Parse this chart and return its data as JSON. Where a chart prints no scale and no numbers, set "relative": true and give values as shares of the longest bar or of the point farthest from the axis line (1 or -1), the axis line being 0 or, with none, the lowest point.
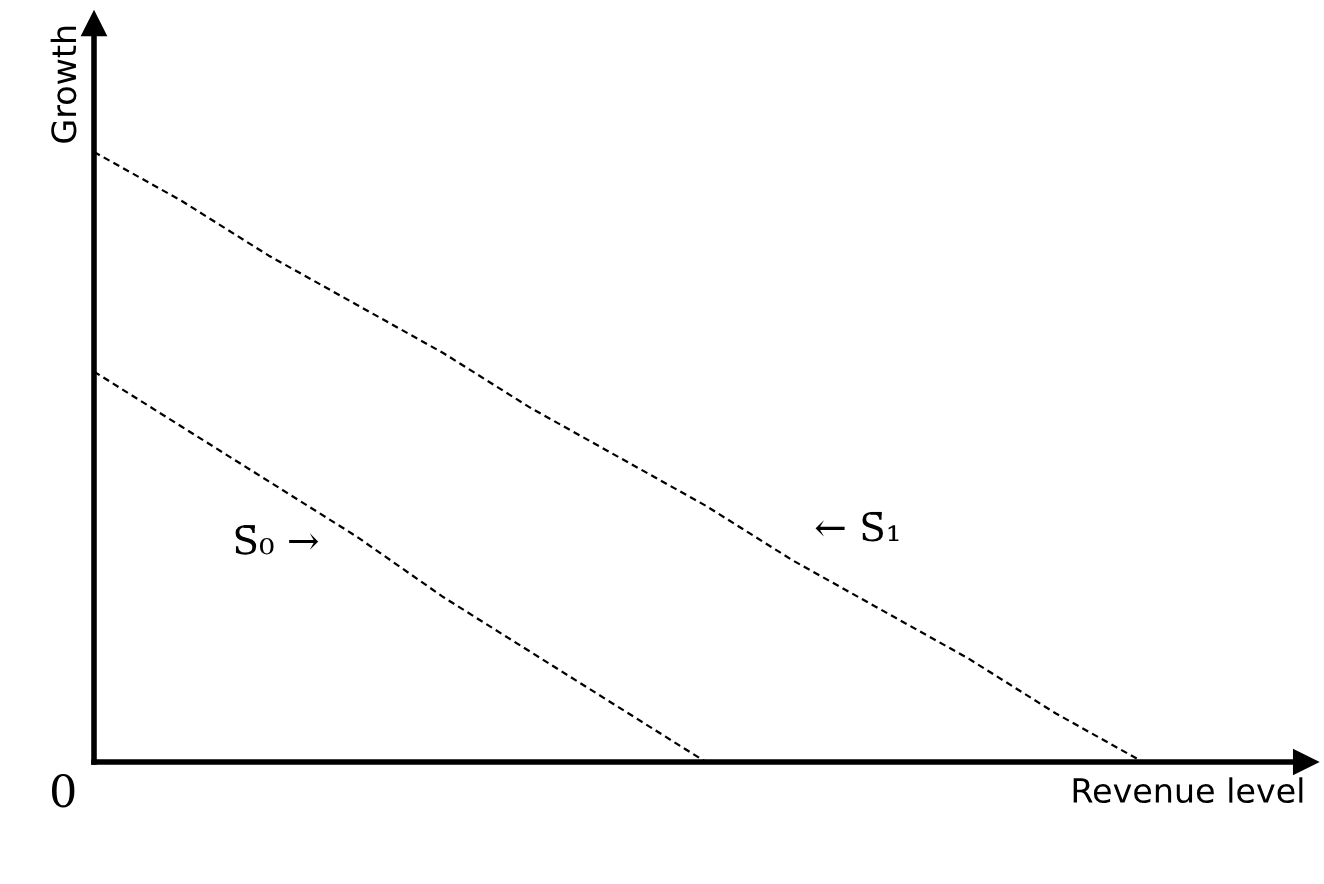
{
  "chart_data": {
    "type": "line",
    "relative": true,
    "xlabel": "Revenue level",
    "ylabel": "Growth",
    "line_style": "dashed",
    "marker": "none",
    "categories": [
      null,
      null,
      null,
      null,
      null,
      null,
      null,
      null,
      null,
      null,
      null,
      null,
      null
    ],
    "series": [
      {
        "name": "S̄₀ →",
        "color": "#000000",
        "values": [
          0.64,
          0.55,
          0.46,
          0.37,
          0.27,
          0.18,
          0.09,
          0,
          null,
          null,
          null,
          null,
          null
        ]
      },
      {
        "name": "← S̄₁",
        "color": "#000000",
        "values": [
          1,
          0.92,
          0.83,
          0.75,
          0.67,
          0.58,
          0.5,
          0.42,
          0.33,
          0.25,
          0.17,
          0.08,
          0
        ]
      }
    ],
    "annotations": [
      "0"
    ]
  }
}
